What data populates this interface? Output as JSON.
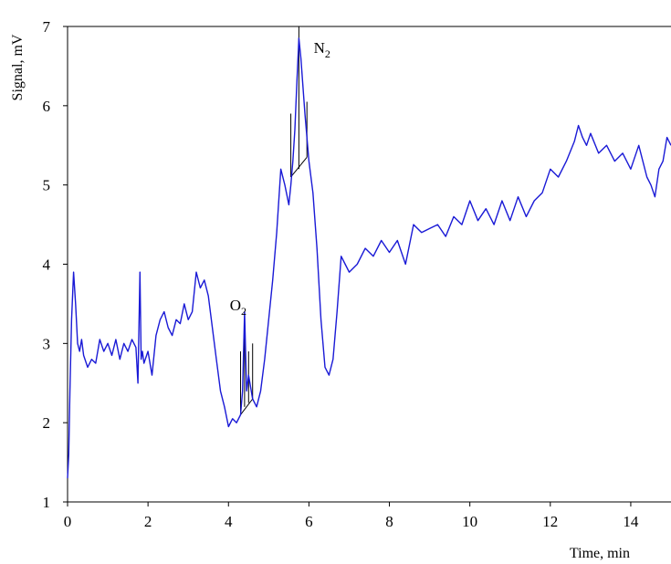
{
  "chart_data": {
    "type": "line",
    "title": "",
    "xlabel": "Time, min",
    "ylabel": "Signal, mV",
    "xlim": [
      0,
      15
    ],
    "ylim": [
      1,
      7
    ],
    "x_ticks": [
      "0",
      "2",
      "4",
      "6",
      "8",
      "10",
      "12",
      "14"
    ],
    "y_ticks": [
      "1",
      "2",
      "3",
      "4",
      "5",
      "6",
      "7"
    ],
    "grid": false,
    "colors": {
      "series": "#1a1ad6",
      "axis": "#000000",
      "annotation": "#000000"
    },
    "series": [
      {
        "x": [
          0.0,
          0.03,
          0.06,
          0.1,
          0.15,
          0.2,
          0.25,
          0.3,
          0.35,
          0.4,
          0.5,
          0.6,
          0.7,
          0.8,
          0.9,
          1.0,
          1.1,
          1.2,
          1.3,
          1.4,
          1.5,
          1.6,
          1.7,
          1.75,
          1.8,
          1.83,
          1.86,
          1.9,
          2.0,
          2.1,
          2.2,
          2.3,
          2.4,
          2.5,
          2.6,
          2.7,
          2.8,
          2.9,
          3.0,
          3.1,
          3.2,
          3.3,
          3.4,
          3.5,
          3.6,
          3.7,
          3.8,
          3.9,
          4.0,
          4.1,
          4.2,
          4.3,
          4.35,
          4.4,
          4.45,
          4.5,
          4.6,
          4.7,
          4.8,
          4.9,
          5.0,
          5.1,
          5.2,
          5.3,
          5.4,
          5.5,
          5.55,
          5.6,
          5.65,
          5.7,
          5.75,
          5.8,
          5.9,
          6.0,
          6.1,
          6.2,
          6.3,
          6.4,
          6.5,
          6.6,
          6.7,
          6.8,
          6.9,
          7.0,
          7.2,
          7.4,
          7.6,
          7.8,
          8.0,
          8.2,
          8.4,
          8.6,
          8.8,
          9.0,
          9.2,
          9.4,
          9.6,
          9.8,
          10.0,
          10.2,
          10.4,
          10.6,
          10.8,
          11.0,
          11.2,
          11.4,
          11.6,
          11.8,
          12.0,
          12.2,
          12.4,
          12.6,
          12.7,
          12.8,
          12.9,
          13.0,
          13.2,
          13.4,
          13.6,
          13.8,
          14.0,
          14.2,
          14.4,
          14.5,
          14.6,
          14.7,
          14.8,
          14.9,
          15.0
        ],
        "values": [
          1.3,
          1.6,
          2.4,
          3.3,
          3.9,
          3.5,
          3.0,
          2.9,
          3.05,
          2.85,
          2.7,
          2.8,
          2.75,
          3.05,
          2.9,
          3.0,
          2.85,
          3.05,
          2.8,
          3.0,
          2.9,
          3.05,
          2.95,
          2.5,
          3.9,
          2.8,
          2.9,
          2.75,
          2.9,
          2.6,
          3.1,
          3.3,
          3.4,
          3.2,
          3.1,
          3.3,
          3.25,
          3.5,
          3.3,
          3.4,
          3.9,
          3.7,
          3.8,
          3.6,
          3.2,
          2.8,
          2.4,
          2.2,
          1.95,
          2.05,
          2.0,
          2.1,
          2.4,
          3.4,
          2.4,
          2.6,
          2.3,
          2.2,
          2.4,
          2.8,
          3.3,
          3.8,
          4.4,
          5.2,
          5.0,
          4.75,
          5.0,
          5.3,
          5.7,
          6.3,
          6.85,
          6.6,
          5.9,
          5.3,
          4.9,
          4.2,
          3.3,
          2.7,
          2.6,
          2.8,
          3.4,
          4.1,
          4.0,
          3.9,
          4.0,
          4.2,
          4.1,
          4.3,
          4.15,
          4.3,
          4.0,
          4.5,
          4.4,
          4.45,
          4.5,
          4.35,
          4.6,
          4.5,
          4.8,
          4.55,
          4.7,
          4.5,
          4.8,
          4.55,
          4.85,
          4.6,
          4.8,
          4.9,
          5.2,
          5.1,
          5.3,
          5.55,
          5.75,
          5.6,
          5.5,
          5.65,
          5.4,
          5.5,
          5.3,
          5.4,
          5.2,
          5.5,
          5.1,
          5.0,
          4.85,
          5.2,
          5.3,
          5.6,
          5.5
        ]
      }
    ],
    "annotations": [
      {
        "label": "O",
        "subscript": "2",
        "x": 4.35,
        "y": 3.35
      },
      {
        "label": "N",
        "subscript": "2",
        "x": 5.8,
        "y": 6.85
      }
    ]
  }
}
